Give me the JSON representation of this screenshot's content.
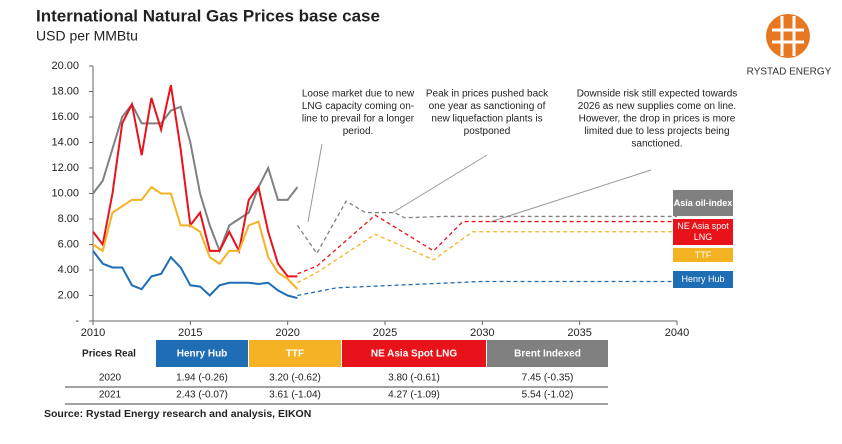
{
  "header": {
    "title": "International Natural Gas Prices base case",
    "subtitle": "USD per MMBtu",
    "logo": "RYSTAD ENERGY"
  },
  "chart_data": {
    "type": "line",
    "xlim": [
      2010,
      2040
    ],
    "xticks": [
      2010,
      2015,
      2020,
      2025,
      2030,
      2035,
      2040
    ],
    "ylim": [
      0,
      20
    ],
    "yticks": [
      {
        "value": 0,
        "label": "-"
      },
      {
        "value": 2,
        "label": "2.00"
      },
      {
        "value": 4,
        "label": "4.00"
      },
      {
        "value": 6,
        "label": "6.00"
      },
      {
        "value": 8,
        "label": "8.00"
      },
      {
        "value": 10,
        "label": "10.00"
      },
      {
        "value": 12,
        "label": "12.00"
      },
      {
        "value": 14,
        "label": "14.00"
      },
      {
        "value": 16,
        "label": "16.00"
      },
      {
        "value": 18,
        "label": "18.00"
      },
      {
        "value": 20,
        "label": "20.00"
      }
    ],
    "series": [
      {
        "name": "Asia oil-index",
        "color": "#808080",
        "x": [
          2010,
          2010.5,
          2011,
          2011.5,
          2012,
          2012.5,
          2013,
          2013.5,
          2014,
          2014.5,
          2015,
          2015.5,
          2016,
          2016.5,
          2017,
          2017.5,
          2018,
          2018.5,
          2019,
          2019.5,
          2020,
          2020.5
        ],
        "values": [
          10,
          11,
          13.5,
          16,
          17,
          15.5,
          15.5,
          15.5,
          16.5,
          16.8,
          14,
          10,
          7.5,
          5.5,
          7.5,
          8,
          8.5,
          10.5,
          12,
          9.5,
          9.5,
          10.5
        ]
      },
      {
        "name": "NE Asia spot LNG",
        "color": "#e8121b",
        "x": [
          2010,
          2010.5,
          2011,
          2011.5,
          2012,
          2012.5,
          2013,
          2013.5,
          2014,
          2014.5,
          2015,
          2015.5,
          2016,
          2016.5,
          2017,
          2017.5,
          2018,
          2018.5,
          2019,
          2019.5,
          2020,
          2020.5
        ],
        "values": [
          7,
          6,
          10,
          15.5,
          17,
          13,
          17.5,
          15,
          18.5,
          13.5,
          7.5,
          8.5,
          5.5,
          5.5,
          7,
          5.5,
          9.5,
          10.5,
          7,
          4.5,
          3.5,
          3.5
        ]
      },
      {
        "name": "TTF",
        "color": "#f5b324",
        "x": [
          2010,
          2010.5,
          2011,
          2011.5,
          2012,
          2012.5,
          2013,
          2013.5,
          2014,
          2014.5,
          2015,
          2015.5,
          2016,
          2016.5,
          2017,
          2017.5,
          2018,
          2018.5,
          2019,
          2019.5,
          2020,
          2020.5
        ],
        "values": [
          6,
          5.5,
          8.5,
          9,
          9.5,
          9.5,
          10.5,
          10,
          10,
          7.5,
          7.5,
          7,
          5,
          4.5,
          5.5,
          5.5,
          7.5,
          7.8,
          5,
          3.8,
          3.3,
          2.5
        ]
      },
      {
        "name": "Henry Hub",
        "color": "#1f6db5",
        "x": [
          2010,
          2010.5,
          2011,
          2011.5,
          2012,
          2012.5,
          2013,
          2013.5,
          2014,
          2014.5,
          2015,
          2015.5,
          2016,
          2016.5,
          2017,
          2017.5,
          2018,
          2018.5,
          2019,
          2019.5,
          2020,
          2020.5
        ],
        "values": [
          5.5,
          4.5,
          4.2,
          4.2,
          2.8,
          2.5,
          3.5,
          3.7,
          5,
          4.2,
          2.8,
          2.7,
          2,
          2.8,
          3,
          3,
          3,
          2.9,
          3,
          2.4,
          2,
          1.8
        ]
      }
    ],
    "forecast": [
      {
        "color": "#808080",
        "x": [
          2020.5,
          2021.5,
          2023,
          2024,
          2025.5,
          2026,
          2028,
          2040
        ],
        "values": [
          7.5,
          5.3,
          9.4,
          8.5,
          8.5,
          8.1,
          8.2,
          8.2
        ]
      },
      {
        "color": "#e8121b",
        "x": [
          2020.5,
          2021.5,
          2024.5,
          2027.5,
          2029,
          2040
        ],
        "values": [
          3.7,
          4.3,
          8.3,
          5.5,
          7.8,
          7.8
        ]
      },
      {
        "color": "#f5b324",
        "x": [
          2020.5,
          2021.5,
          2023,
          2024.5,
          2027.5,
          2029.5,
          2040
        ],
        "values": [
          3,
          3.8,
          5.3,
          6.8,
          4.8,
          7,
          7
        ]
      },
      {
        "color": "#1f6db5",
        "x": [
          2020.5,
          2022.5,
          2030,
          2040
        ],
        "values": [
          2,
          2.6,
          3.1,
          3.1
        ]
      }
    ],
    "annotations": [
      [
        "Loose market due to new",
        "LNG capacity coming on-",
        "line to prevail for a longer",
        "period."
      ],
      [
        "Peak in prices pushed back",
        "one year as sanctioning of",
        "new liquefaction plants is",
        "postponed"
      ],
      [
        "Downside risk still expected towards",
        "2026 as new supplies come on line.",
        "However, the drop in prices is  more",
        "limited due to less projects being",
        "sanctioned."
      ]
    ]
  },
  "table": {
    "header": [
      "Prices Real",
      "Henry Hub",
      "TTF",
      "NE Asia Spot LNG",
      "Brent Indexed"
    ],
    "rows": [
      [
        "2020",
        "1.94 (-0.26)",
        "3.20 (-0.62)",
        "3.80 (-0.61)",
        "7.45 (-0.35)"
      ],
      [
        "2021",
        "2.43 (-0.07)",
        "3.61 (-1.04)",
        "4.27 (-1.09)",
        "5.54 (-1.02)"
      ]
    ]
  },
  "source": "Source: Rystad Energy research and analysis, EIKON"
}
